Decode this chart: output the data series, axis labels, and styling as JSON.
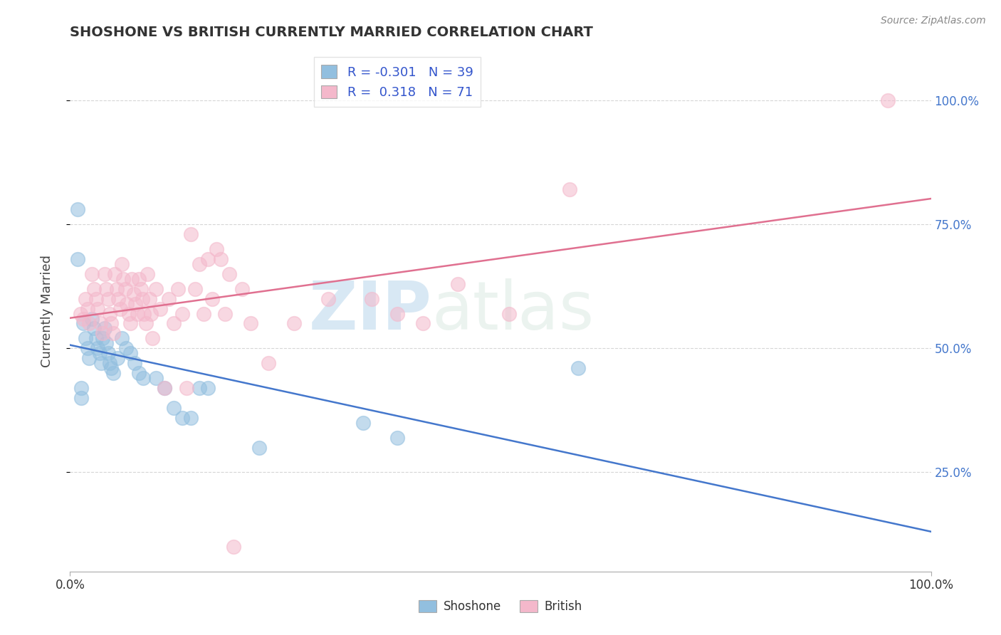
{
  "title": "SHOSHONE VS BRITISH CURRENTLY MARRIED CORRELATION CHART",
  "source_text": "Source: ZipAtlas.com",
  "ylabel": "Currently Married",
  "shoshone_color": "#92bfdf",
  "british_color": "#f4b8cb",
  "shoshone_line_color": "#4477cc",
  "british_line_color": "#e07090",
  "R_shoshone": -0.301,
  "N_shoshone": 39,
  "R_british": 0.318,
  "N_british": 71,
  "legend_text_color": "#3355cc",
  "watermark_zip": "ZIP",
  "watermark_atlas": "atlas",
  "grid_color": "#cccccc",
  "shoshone_points": [
    [
      0.015,
      0.55
    ],
    [
      0.018,
      0.52
    ],
    [
      0.02,
      0.5
    ],
    [
      0.022,
      0.48
    ],
    [
      0.025,
      0.56
    ],
    [
      0.028,
      0.54
    ],
    [
      0.03,
      0.52
    ],
    [
      0.032,
      0.5
    ],
    [
      0.034,
      0.49
    ],
    [
      0.036,
      0.47
    ],
    [
      0.038,
      0.52
    ],
    [
      0.04,
      0.54
    ],
    [
      0.042,
      0.51
    ],
    [
      0.044,
      0.49
    ],
    [
      0.046,
      0.47
    ],
    [
      0.048,
      0.46
    ],
    [
      0.05,
      0.45
    ],
    [
      0.055,
      0.48
    ],
    [
      0.06,
      0.52
    ],
    [
      0.065,
      0.5
    ],
    [
      0.07,
      0.49
    ],
    [
      0.075,
      0.47
    ],
    [
      0.08,
      0.45
    ],
    [
      0.085,
      0.44
    ],
    [
      0.009,
      0.78
    ],
    [
      0.009,
      0.68
    ],
    [
      0.013,
      0.42
    ],
    [
      0.013,
      0.4
    ],
    [
      0.1,
      0.44
    ],
    [
      0.11,
      0.42
    ],
    [
      0.12,
      0.38
    ],
    [
      0.13,
      0.36
    ],
    [
      0.14,
      0.36
    ],
    [
      0.15,
      0.42
    ],
    [
      0.16,
      0.42
    ],
    [
      0.22,
      0.3
    ],
    [
      0.34,
      0.35
    ],
    [
      0.38,
      0.32
    ],
    [
      0.59,
      0.46
    ]
  ],
  "british_points": [
    [
      0.012,
      0.57
    ],
    [
      0.015,
      0.56
    ],
    [
      0.018,
      0.6
    ],
    [
      0.02,
      0.58
    ],
    [
      0.022,
      0.55
    ],
    [
      0.025,
      0.65
    ],
    [
      0.028,
      0.62
    ],
    [
      0.03,
      0.6
    ],
    [
      0.032,
      0.58
    ],
    [
      0.035,
      0.55
    ],
    [
      0.038,
      0.53
    ],
    [
      0.04,
      0.65
    ],
    [
      0.042,
      0.62
    ],
    [
      0.044,
      0.6
    ],
    [
      0.046,
      0.57
    ],
    [
      0.048,
      0.55
    ],
    [
      0.05,
      0.53
    ],
    [
      0.052,
      0.65
    ],
    [
      0.054,
      0.62
    ],
    [
      0.056,
      0.6
    ],
    [
      0.058,
      0.58
    ],
    [
      0.06,
      0.67
    ],
    [
      0.062,
      0.64
    ],
    [
      0.064,
      0.62
    ],
    [
      0.066,
      0.59
    ],
    [
      0.068,
      0.57
    ],
    [
      0.07,
      0.55
    ],
    [
      0.072,
      0.64
    ],
    [
      0.074,
      0.61
    ],
    [
      0.076,
      0.59
    ],
    [
      0.078,
      0.57
    ],
    [
      0.08,
      0.64
    ],
    [
      0.082,
      0.62
    ],
    [
      0.084,
      0.6
    ],
    [
      0.086,
      0.57
    ],
    [
      0.088,
      0.55
    ],
    [
      0.09,
      0.65
    ],
    [
      0.092,
      0.6
    ],
    [
      0.094,
      0.57
    ],
    [
      0.096,
      0.52
    ],
    [
      0.1,
      0.62
    ],
    [
      0.105,
      0.58
    ],
    [
      0.11,
      0.42
    ],
    [
      0.115,
      0.6
    ],
    [
      0.12,
      0.55
    ],
    [
      0.125,
      0.62
    ],
    [
      0.13,
      0.57
    ],
    [
      0.135,
      0.42
    ],
    [
      0.14,
      0.73
    ],
    [
      0.145,
      0.62
    ],
    [
      0.15,
      0.67
    ],
    [
      0.155,
      0.57
    ],
    [
      0.16,
      0.68
    ],
    [
      0.165,
      0.6
    ],
    [
      0.17,
      0.7
    ],
    [
      0.175,
      0.68
    ],
    [
      0.18,
      0.57
    ],
    [
      0.185,
      0.65
    ],
    [
      0.19,
      0.1
    ],
    [
      0.2,
      0.62
    ],
    [
      0.21,
      0.55
    ],
    [
      0.23,
      0.47
    ],
    [
      0.26,
      0.55
    ],
    [
      0.3,
      0.6
    ],
    [
      0.35,
      0.6
    ],
    [
      0.38,
      0.57
    ],
    [
      0.41,
      0.55
    ],
    [
      0.45,
      0.63
    ],
    [
      0.51,
      0.57
    ],
    [
      0.58,
      0.82
    ],
    [
      0.95,
      1.0
    ]
  ]
}
